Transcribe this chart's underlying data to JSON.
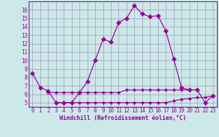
{
  "xlabel": "Windchill (Refroidissement éolien,°C)",
  "bg_color": "#cce8e8",
  "grid_color": "#9999bb",
  "line_color": "#990099",
  "x_values": [
    0,
    1,
    2,
    3,
    4,
    5,
    6,
    7,
    8,
    9,
    10,
    11,
    12,
    13,
    14,
    15,
    16,
    17,
    18,
    19,
    20,
    21,
    22,
    23
  ],
  "line1_y": [
    8.5,
    6.8,
    6.4,
    5.0,
    5.0,
    5.0,
    6.2,
    7.5,
    10.0,
    12.5,
    12.2,
    14.5,
    15.0,
    16.5,
    15.5,
    15.2,
    15.3,
    13.5,
    10.2,
    6.8,
    6.5,
    6.5,
    5.0,
    5.8
  ],
  "line2_y": [
    null,
    null,
    6.2,
    6.2,
    6.2,
    6.2,
    6.2,
    6.2,
    6.2,
    6.2,
    6.2,
    6.2,
    6.5,
    6.5,
    6.5,
    6.5,
    6.5,
    6.5,
    6.5,
    6.5,
    6.5,
    6.5,
    null,
    null
  ],
  "line3_y": [
    null,
    null,
    null,
    5.0,
    5.0,
    5.0,
    5.0,
    5.0,
    5.0,
    5.0,
    5.0,
    5.0,
    5.0,
    5.0,
    5.0,
    5.0,
    5.0,
    5.0,
    5.2,
    5.4,
    5.5,
    5.6,
    5.6,
    5.8
  ],
  "ylim": [
    4.5,
    17.0
  ],
  "xlim": [
    -0.5,
    23.5
  ],
  "yticks": [
    5,
    6,
    7,
    8,
    9,
    10,
    11,
    12,
    13,
    14,
    15,
    16
  ],
  "xticks": [
    0,
    1,
    2,
    3,
    4,
    5,
    6,
    7,
    8,
    9,
    10,
    11,
    12,
    13,
    14,
    15,
    16,
    17,
    18,
    19,
    20,
    21,
    22,
    23
  ],
  "tick_fontsize": 5.5,
  "xlabel_fontsize": 6.0,
  "marker_size": 3.5,
  "linewidth": 0.9
}
